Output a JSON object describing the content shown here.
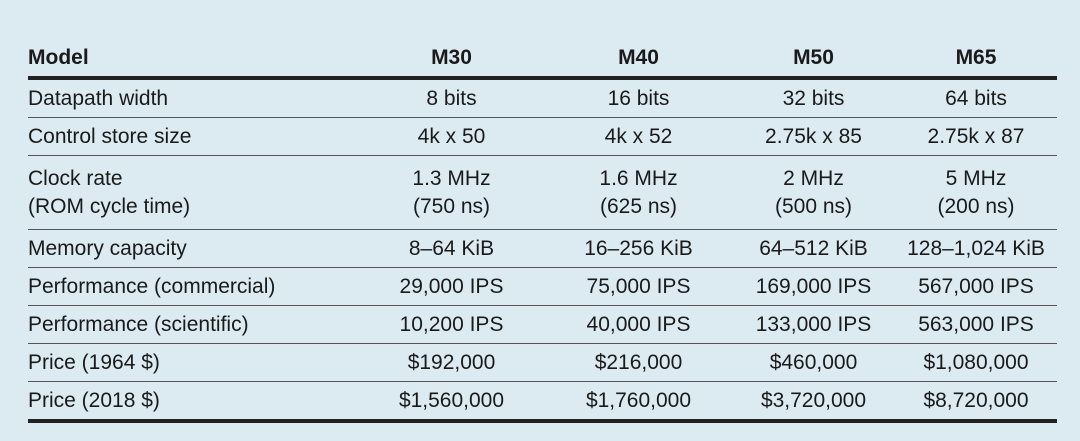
{
  "table": {
    "header": {
      "label": "Model",
      "models": [
        "M30",
        "M40",
        "M50",
        "M65"
      ]
    },
    "rows": [
      {
        "label": "Datapath width",
        "values": [
          "8 bits",
          "16 bits",
          "32 bits",
          "64 bits"
        ]
      },
      {
        "label": "Control store size",
        "values": [
          "4k x 50",
          "4k x 52",
          "2.75k x 85",
          "2.75k x 87"
        ]
      },
      {
        "label": "Clock rate",
        "label_sub": "(ROM cycle time)",
        "values": [
          "1.3 MHz",
          "1.6 MHz",
          "2 MHz",
          "5 MHz"
        ],
        "values_sub": [
          "(750 ns)",
          "(625 ns)",
          "(500 ns)",
          "(200 ns)"
        ]
      },
      {
        "label": "Memory capacity",
        "values": [
          "8–64 KiB",
          "16–256 KiB",
          "64–512 KiB",
          "128–1,024 KiB"
        ]
      },
      {
        "label": "Performance (commercial)",
        "values": [
          "29,000 IPS",
          "75,000 IPS",
          "169,000 IPS",
          "567,000 IPS"
        ]
      },
      {
        "label": "Performance (scientific)",
        "values": [
          "10,200 IPS",
          "40,000 IPS",
          "133,000 IPS",
          "563,000 IPS"
        ]
      },
      {
        "label": "Price (1964 $)",
        "values": [
          "$192,000",
          "$216,000",
          "$460,000",
          "$1,080,000"
        ]
      },
      {
        "label": "Price (2018 $)",
        "values": [
          "$1,560,000",
          "$1,760,000",
          "$3,720,000",
          "$8,720,000"
        ]
      }
    ]
  }
}
